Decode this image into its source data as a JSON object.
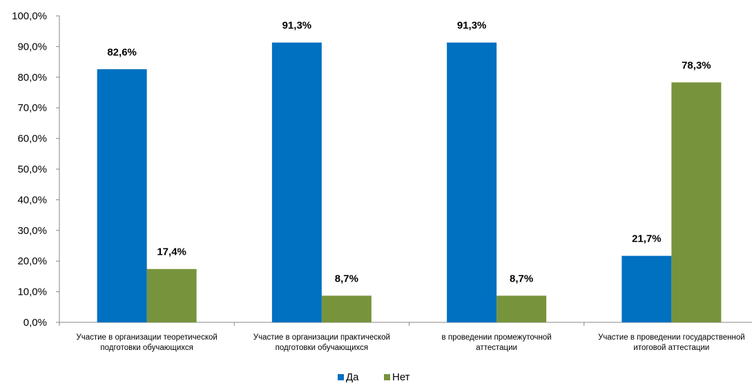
{
  "chart_data": {
    "type": "bar",
    "title": "",
    "xlabel": "",
    "ylabel": "",
    "ylim": [
      0,
      100
    ],
    "y_ticks": [
      "0,0%",
      "10,0%",
      "20,0%",
      "30,0%",
      "40,0%",
      "50,0%",
      "60,0%",
      "70,0%",
      "80,0%",
      "90,0%",
      "100,0%"
    ],
    "categories": [
      [
        "Участие в организации теоретической",
        "подготовки обучающихся"
      ],
      [
        "Участие в организации практической",
        "подготовки обучающихся"
      ],
      [
        "в проведении промежуточной",
        "аттестации"
      ],
      [
        "Участие в проведении государственной",
        "итоговой аттестации"
      ]
    ],
    "series": [
      {
        "name": "Да",
        "color": "#0070C0",
        "values": [
          82.6,
          91.3,
          91.3,
          21.7
        ],
        "labels": [
          "82,6%",
          "91,3%",
          "91,3%",
          "21,7%"
        ]
      },
      {
        "name": "Нет",
        "color": "#77933C",
        "values": [
          17.4,
          8.7,
          8.7,
          78.3
        ],
        "labels": [
          "17,4%",
          "8,7%",
          "8,7%",
          "78,3%"
        ]
      }
    ],
    "grid": false,
    "legend_position": "bottom"
  }
}
